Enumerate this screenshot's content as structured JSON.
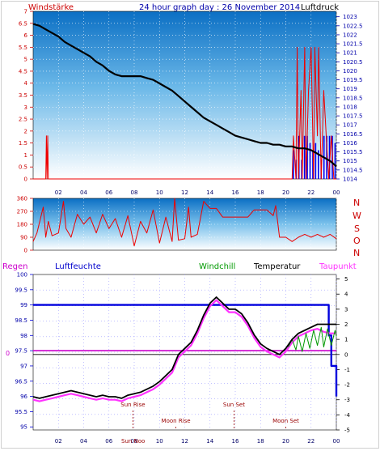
{
  "header": {
    "wind_label": "Windstärke",
    "title": "24 hour graph day : 26 November 2014",
    "pressure_label": "Luftdruck"
  },
  "panel2": {
    "compass": [
      "N",
      "W",
      "S",
      "O",
      "N"
    ]
  },
  "panel3": {
    "legend": {
      "rain": "Regen",
      "humidity": "Luftfeuchte",
      "windchill": "Windchill",
      "temperature": "Temperatur",
      "dewpoint": "Taupunkt"
    },
    "events": {
      "sun_rise": "Sun Rise",
      "sun_set": "Sun Set",
      "moon_rise": "Moon Rise",
      "moon_set": "Moon Set",
      "sun_noon_fragment": "Sun Noo"
    }
  },
  "colors": {
    "wind_axis": "#cc0000",
    "pressure_axis": "#0000aa",
    "humidity": "#0000dd",
    "temperature": "#000000",
    "dewpoint": "#ff33ff",
    "windchill": "#009900",
    "rain": "#cc00cc",
    "event": "#990000"
  },
  "chart_data": [
    {
      "type": "line",
      "name": "wind_and_pressure",
      "x_ticks": [
        "02",
        "04",
        "06",
        "08",
        "10",
        "12",
        "14",
        "16",
        "18",
        "20",
        "22",
        "00"
      ],
      "left_axis": {
        "ticks": [
          "7",
          "6.5",
          "6",
          "5.5",
          "5",
          "4.5",
          "4",
          "3.5",
          "3",
          "2.5",
          "2",
          "1.5",
          "1",
          "0.5",
          "0"
        ],
        "ylim": [
          0,
          7
        ]
      },
      "right_axis": {
        "ticks": [
          "1023",
          "1022.5",
          "1022",
          "1021.5",
          "1021",
          "1020.5",
          "1020",
          "1019.5",
          "1019",
          "1018.5",
          "1018",
          "1017.5",
          "1017",
          "1016.5",
          "1016",
          "1015.5",
          "1015",
          "1014.5",
          "1014"
        ],
        "ylim": [
          1014,
          1023.3
        ]
      },
      "pressure": {
        "x": [
          0,
          0.5,
          1,
          1.5,
          2,
          2.5,
          3,
          3.5,
          4,
          4.5,
          5,
          5.5,
          6,
          6.5,
          7,
          7.5,
          8,
          8.5,
          9,
          9.5,
          10,
          10.5,
          11,
          11.5,
          12,
          12.5,
          13,
          13.5,
          14,
          14.5,
          15,
          15.5,
          16,
          16.5,
          17,
          17.5,
          18,
          18.5,
          19,
          19.5,
          20,
          20.5,
          21,
          21.5,
          22,
          22.5,
          23,
          23.5,
          24
        ],
        "y": [
          1022.6,
          1022.5,
          1022.3,
          1022.1,
          1021.9,
          1021.6,
          1021.4,
          1021.2,
          1021.0,
          1020.8,
          1020.5,
          1020.3,
          1020.0,
          1019.8,
          1019.7,
          1019.7,
          1019.7,
          1019.7,
          1019.6,
          1019.5,
          1019.3,
          1019.1,
          1018.9,
          1018.6,
          1018.3,
          1018.0,
          1017.7,
          1017.4,
          1017.2,
          1017.0,
          1016.8,
          1016.6,
          1016.4,
          1016.3,
          1016.2,
          1016.1,
          1016.0,
          1016.0,
          1015.9,
          1015.9,
          1015.8,
          1015.8,
          1015.7,
          1015.7,
          1015.6,
          1015.4,
          1015.2,
          1015.0,
          1014.7
        ]
      },
      "wind": {
        "x": [
          0,
          1.0,
          1.05,
          1.1,
          1.15,
          1.2,
          20.5,
          20.6,
          20.8,
          20.9,
          21.0,
          21.2,
          21.3,
          21.5,
          21.6,
          21.8,
          22.0,
          22.2,
          22.3,
          22.5,
          22.6,
          22.8,
          23.0,
          23.2,
          23.4,
          23.6,
          23.8,
          24
        ],
        "y": [
          0,
          0,
          1.8,
          0,
          1.8,
          0,
          0,
          1.8,
          0,
          5.5,
          0,
          3.7,
          0,
          5.5,
          0,
          3.7,
          5.5,
          0,
          5.5,
          1.8,
          5.5,
          0,
          3.7,
          1.8,
          0,
          1.8,
          0,
          0
        ]
      }
    },
    {
      "type": "line",
      "name": "wind_direction",
      "left_axis": {
        "ticks": [
          "360",
          "270",
          "180",
          "90",
          "0"
        ],
        "ylim": [
          0,
          360
        ]
      },
      "x": [
        0,
        0.3,
        0.8,
        1.0,
        1.2,
        1.5,
        2.0,
        2.4,
        2.6,
        3.0,
        3.5,
        4.0,
        4.5,
        5.0,
        5.5,
        6.0,
        6.5,
        7.0,
        7.5,
        8.0,
        8.5,
        9.0,
        9.5,
        10.0,
        10.5,
        11.0,
        11.2,
        11.5,
        12.0,
        12.3,
        12.5,
        13.0,
        13.5,
        14.0,
        14.5,
        15.0,
        16.0,
        17.0,
        17.5,
        18.0,
        18.5,
        19.0,
        19.2,
        19.5,
        20.0,
        20.5,
        21.0,
        21.5,
        22.0,
        22.5,
        23.0,
        23.5,
        24
      ],
      "y": [
        60,
        120,
        300,
        90,
        200,
        100,
        120,
        340,
        150,
        90,
        250,
        180,
        230,
        120,
        250,
        150,
        220,
        90,
        240,
        30,
        200,
        120,
        280,
        50,
        230,
        60,
        360,
        70,
        80,
        300,
        90,
        110,
        340,
        290,
        290,
        230,
        230,
        230,
        280,
        280,
        280,
        240,
        310,
        90,
        90,
        60,
        90,
        110,
        90,
        110,
        90,
        110,
        80
      ]
    },
    {
      "type": "line",
      "name": "temperature_humidity",
      "x_ticks": [
        "02",
        "04",
        "06",
        "08",
        "10",
        "12",
        "14",
        "16",
        "18",
        "20",
        "22",
        "00"
      ],
      "left_axis": {
        "ticks": [
          "100",
          "99.5",
          "99",
          "98.5",
          "98",
          "97.5",
          "97",
          "96.5",
          "96",
          "95.5",
          "95"
        ],
        "ylim": [
          94.9,
          100
        ]
      },
      "right_axis": {
        "ticks": [
          "5",
          "4",
          "3",
          "2",
          "1",
          "0",
          "-1",
          "-2",
          "-3",
          "-4",
          "-5"
        ],
        "ylim": [
          -5,
          5.3
        ]
      },
      "rain_marker": "0",
      "temperature": {
        "x": [
          0,
          0.5,
          1,
          1.5,
          2,
          2.5,
          3,
          3.5,
          4,
          4.5,
          5,
          5.5,
          6,
          6.5,
          7,
          7.5,
          8,
          8.5,
          9,
          9.5,
          10,
          10.5,
          11,
          11.5,
          12,
          12.5,
          13,
          13.5,
          14,
          14.5,
          15,
          15.5,
          16,
          16.5,
          17,
          17.5,
          18,
          18.5,
          19,
          19.5,
          20,
          20.5,
          21,
          21.5,
          22,
          22.5,
          23,
          23.5,
          24
        ],
        "y": [
          -2.8,
          -2.9,
          -2.8,
          -2.7,
          -2.6,
          -2.5,
          -2.4,
          -2.5,
          -2.6,
          -2.7,
          -2.8,
          -2.7,
          -2.8,
          -2.8,
          -2.9,
          -2.7,
          -2.6,
          -2.5,
          -2.3,
          -2.1,
          -1.8,
          -1.4,
          -1.0,
          0.0,
          0.4,
          0.8,
          1.6,
          2.6,
          3.4,
          3.8,
          3.4,
          3.0,
          3.0,
          2.7,
          2.1,
          1.3,
          0.7,
          0.4,
          0.2,
          0.0,
          0.4,
          1.0,
          1.4,
          1.6,
          1.8,
          2.0,
          2.0,
          2.0,
          2.0
        ]
      },
      "dewpoint": {
        "x": [
          0,
          0.5,
          1,
          1.5,
          2,
          2.5,
          3,
          3.5,
          4,
          4.5,
          5,
          5.5,
          6,
          6.5,
          7,
          7.5,
          8,
          8.5,
          9,
          9.5,
          10,
          10.5,
          11,
          11.5,
          12,
          12.5,
          13,
          13.5,
          14,
          14.5,
          15,
          15.5,
          16,
          16.5,
          17,
          17.5,
          18,
          18.5,
          19,
          19.5,
          20,
          20.5,
          21,
          21.5,
          22,
          22.5,
          23,
          23.5,
          24
        ],
        "y": [
          -3.0,
          -3.1,
          -3.0,
          -2.9,
          -2.8,
          -2.7,
          -2.6,
          -2.7,
          -2.8,
          -2.9,
          -3.0,
          -2.9,
          -3.0,
          -3.0,
          -3.1,
          -2.9,
          -2.8,
          -2.7,
          -2.5,
          -2.3,
          -2.0,
          -1.6,
          -1.2,
          -0.2,
          0.2,
          0.6,
          1.4,
          2.4,
          3.2,
          3.6,
          3.2,
          2.8,
          2.8,
          2.5,
          1.9,
          1.1,
          0.5,
          0.2,
          0.0,
          -0.2,
          0.2,
          0.8,
          1.2,
          1.4,
          1.6,
          1.7,
          1.5,
          1.4,
          1.4
        ]
      },
      "windchill": {
        "x": [
          20.2,
          20.5,
          20.8,
          21.0,
          21.3,
          21.6,
          21.9,
          22.2,
          22.5,
          22.8,
          23.0,
          23.3,
          23.6,
          23.9,
          24
        ],
        "y": [
          0.5,
          1.0,
          0.3,
          1.2,
          0.2,
          1.4,
          0.4,
          1.6,
          0.6,
          1.8,
          0.5,
          1.7,
          0.6,
          1.6,
          1.2
        ]
      },
      "humidity": {
        "x": [
          0,
          23.4,
          23.4,
          23.6,
          23.6,
          24,
          24
        ],
        "y": [
          99,
          99,
          98.0,
          98.0,
          97.0,
          97.0,
          96.0
        ]
      },
      "rain": {
        "x": [
          0,
          24
        ],
        "y": [
          97.5,
          97.5
        ]
      },
      "events": [
        {
          "label": "Sun Rise",
          "time": 7.9
        },
        {
          "label": "Moon Rise",
          "time": 11.3
        },
        {
          "label": "Sun Set",
          "time": 15.9
        },
        {
          "label": "Moon Set",
          "time": 20.0
        }
      ]
    }
  ]
}
